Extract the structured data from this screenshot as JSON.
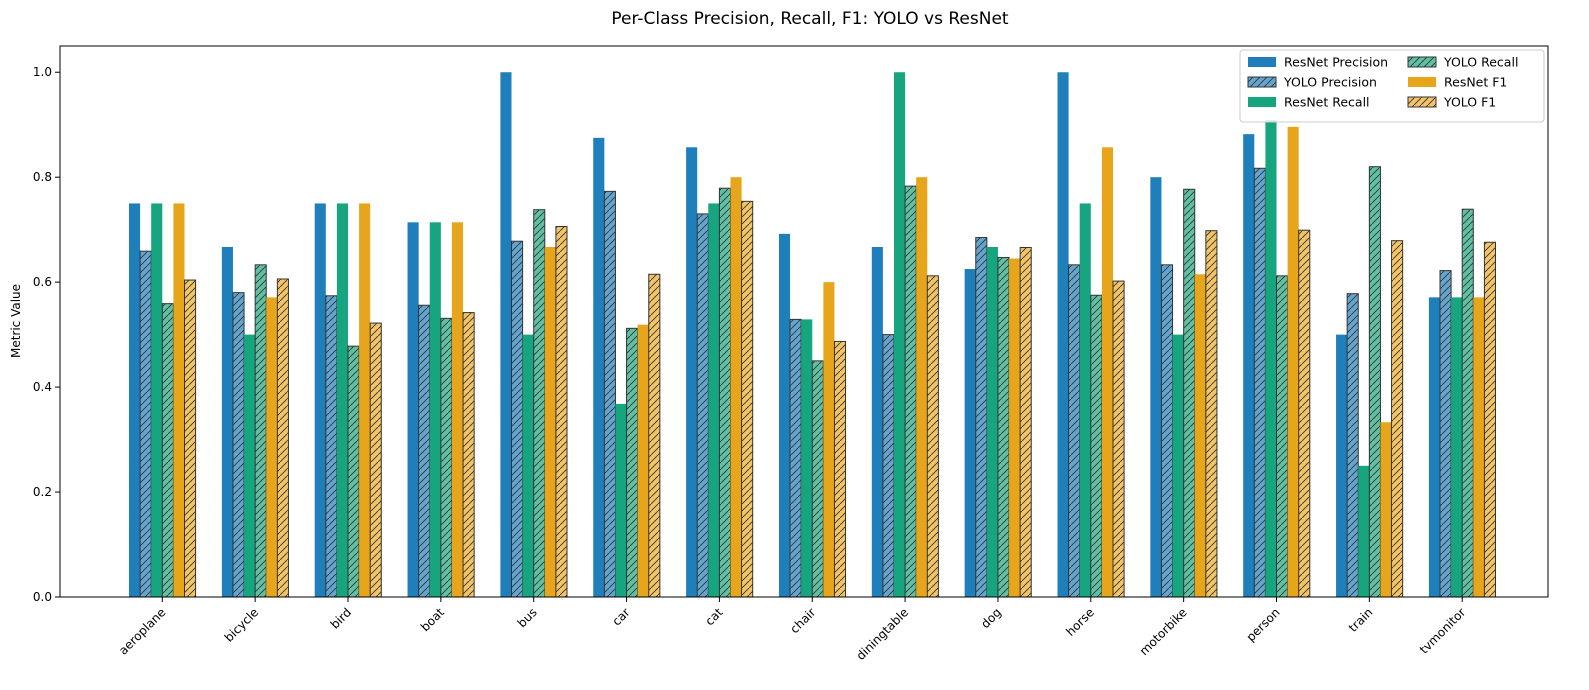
{
  "chart_data": {
    "type": "bar",
    "title": "Per-Class Precision, Recall, F1: YOLO vs ResNet",
    "xlabel": "",
    "ylabel": "Metric Value",
    "ylim": [
      0,
      1.05
    ],
    "yticks": [
      "0.0",
      "0.2",
      "0.4",
      "0.6",
      "0.8",
      "1.0"
    ],
    "grid": false,
    "legend_position": "top-right",
    "categories": [
      "aeroplane",
      "bicycle",
      "bird",
      "boat",
      "bus",
      "car",
      "cat",
      "chair",
      "diningtable",
      "dog",
      "horse",
      "motorbike",
      "person",
      "train",
      "tvmonitor"
    ],
    "series": [
      {
        "name": "ResNet Precision",
        "color": "#1f7fbb",
        "hatch": false,
        "values": [
          0.75,
          0.667,
          0.75,
          0.714,
          1.0,
          0.875,
          0.857,
          0.692,
          0.667,
          0.625,
          1.0,
          0.8,
          0.882,
          0.5,
          0.571
        ]
      },
      {
        "name": "YOLO Precision",
        "color": "#63a5cf",
        "hatch": true,
        "values": [
          0.659,
          0.58,
          0.574,
          0.556,
          0.678,
          0.773,
          0.73,
          0.529,
          0.5,
          0.685,
          0.633,
          0.633,
          0.817,
          0.578,
          0.622
        ]
      },
      {
        "name": "ResNet Recall",
        "color": "#16a57f",
        "hatch": false,
        "values": [
          0.75,
          0.5,
          0.75,
          0.714,
          0.5,
          0.368,
          0.75,
          0.529,
          1.0,
          0.667,
          0.75,
          0.5,
          0.909,
          0.25,
          0.571
        ]
      },
      {
        "name": "YOLO Recall",
        "color": "#5fc0a3",
        "hatch": true,
        "values": [
          0.559,
          0.633,
          0.478,
          0.531,
          0.738,
          0.512,
          0.779,
          0.45,
          0.783,
          0.647,
          0.575,
          0.777,
          0.612,
          0.82,
          0.739
        ]
      },
      {
        "name": "ResNet F1",
        "color": "#e6a51a",
        "hatch": false,
        "values": [
          0.75,
          0.571,
          0.75,
          0.714,
          0.667,
          0.519,
          0.8,
          0.6,
          0.8,
          0.645,
          0.857,
          0.615,
          0.896,
          0.333,
          0.571
        ]
      },
      {
        "name": "YOLO F1",
        "color": "#f3c466",
        "hatch": true,
        "values": [
          0.604,
          0.606,
          0.522,
          0.542,
          0.706,
          0.615,
          0.754,
          0.487,
          0.612,
          0.666,
          0.602,
          0.698,
          0.699,
          0.679,
          0.676
        ]
      }
    ]
  }
}
